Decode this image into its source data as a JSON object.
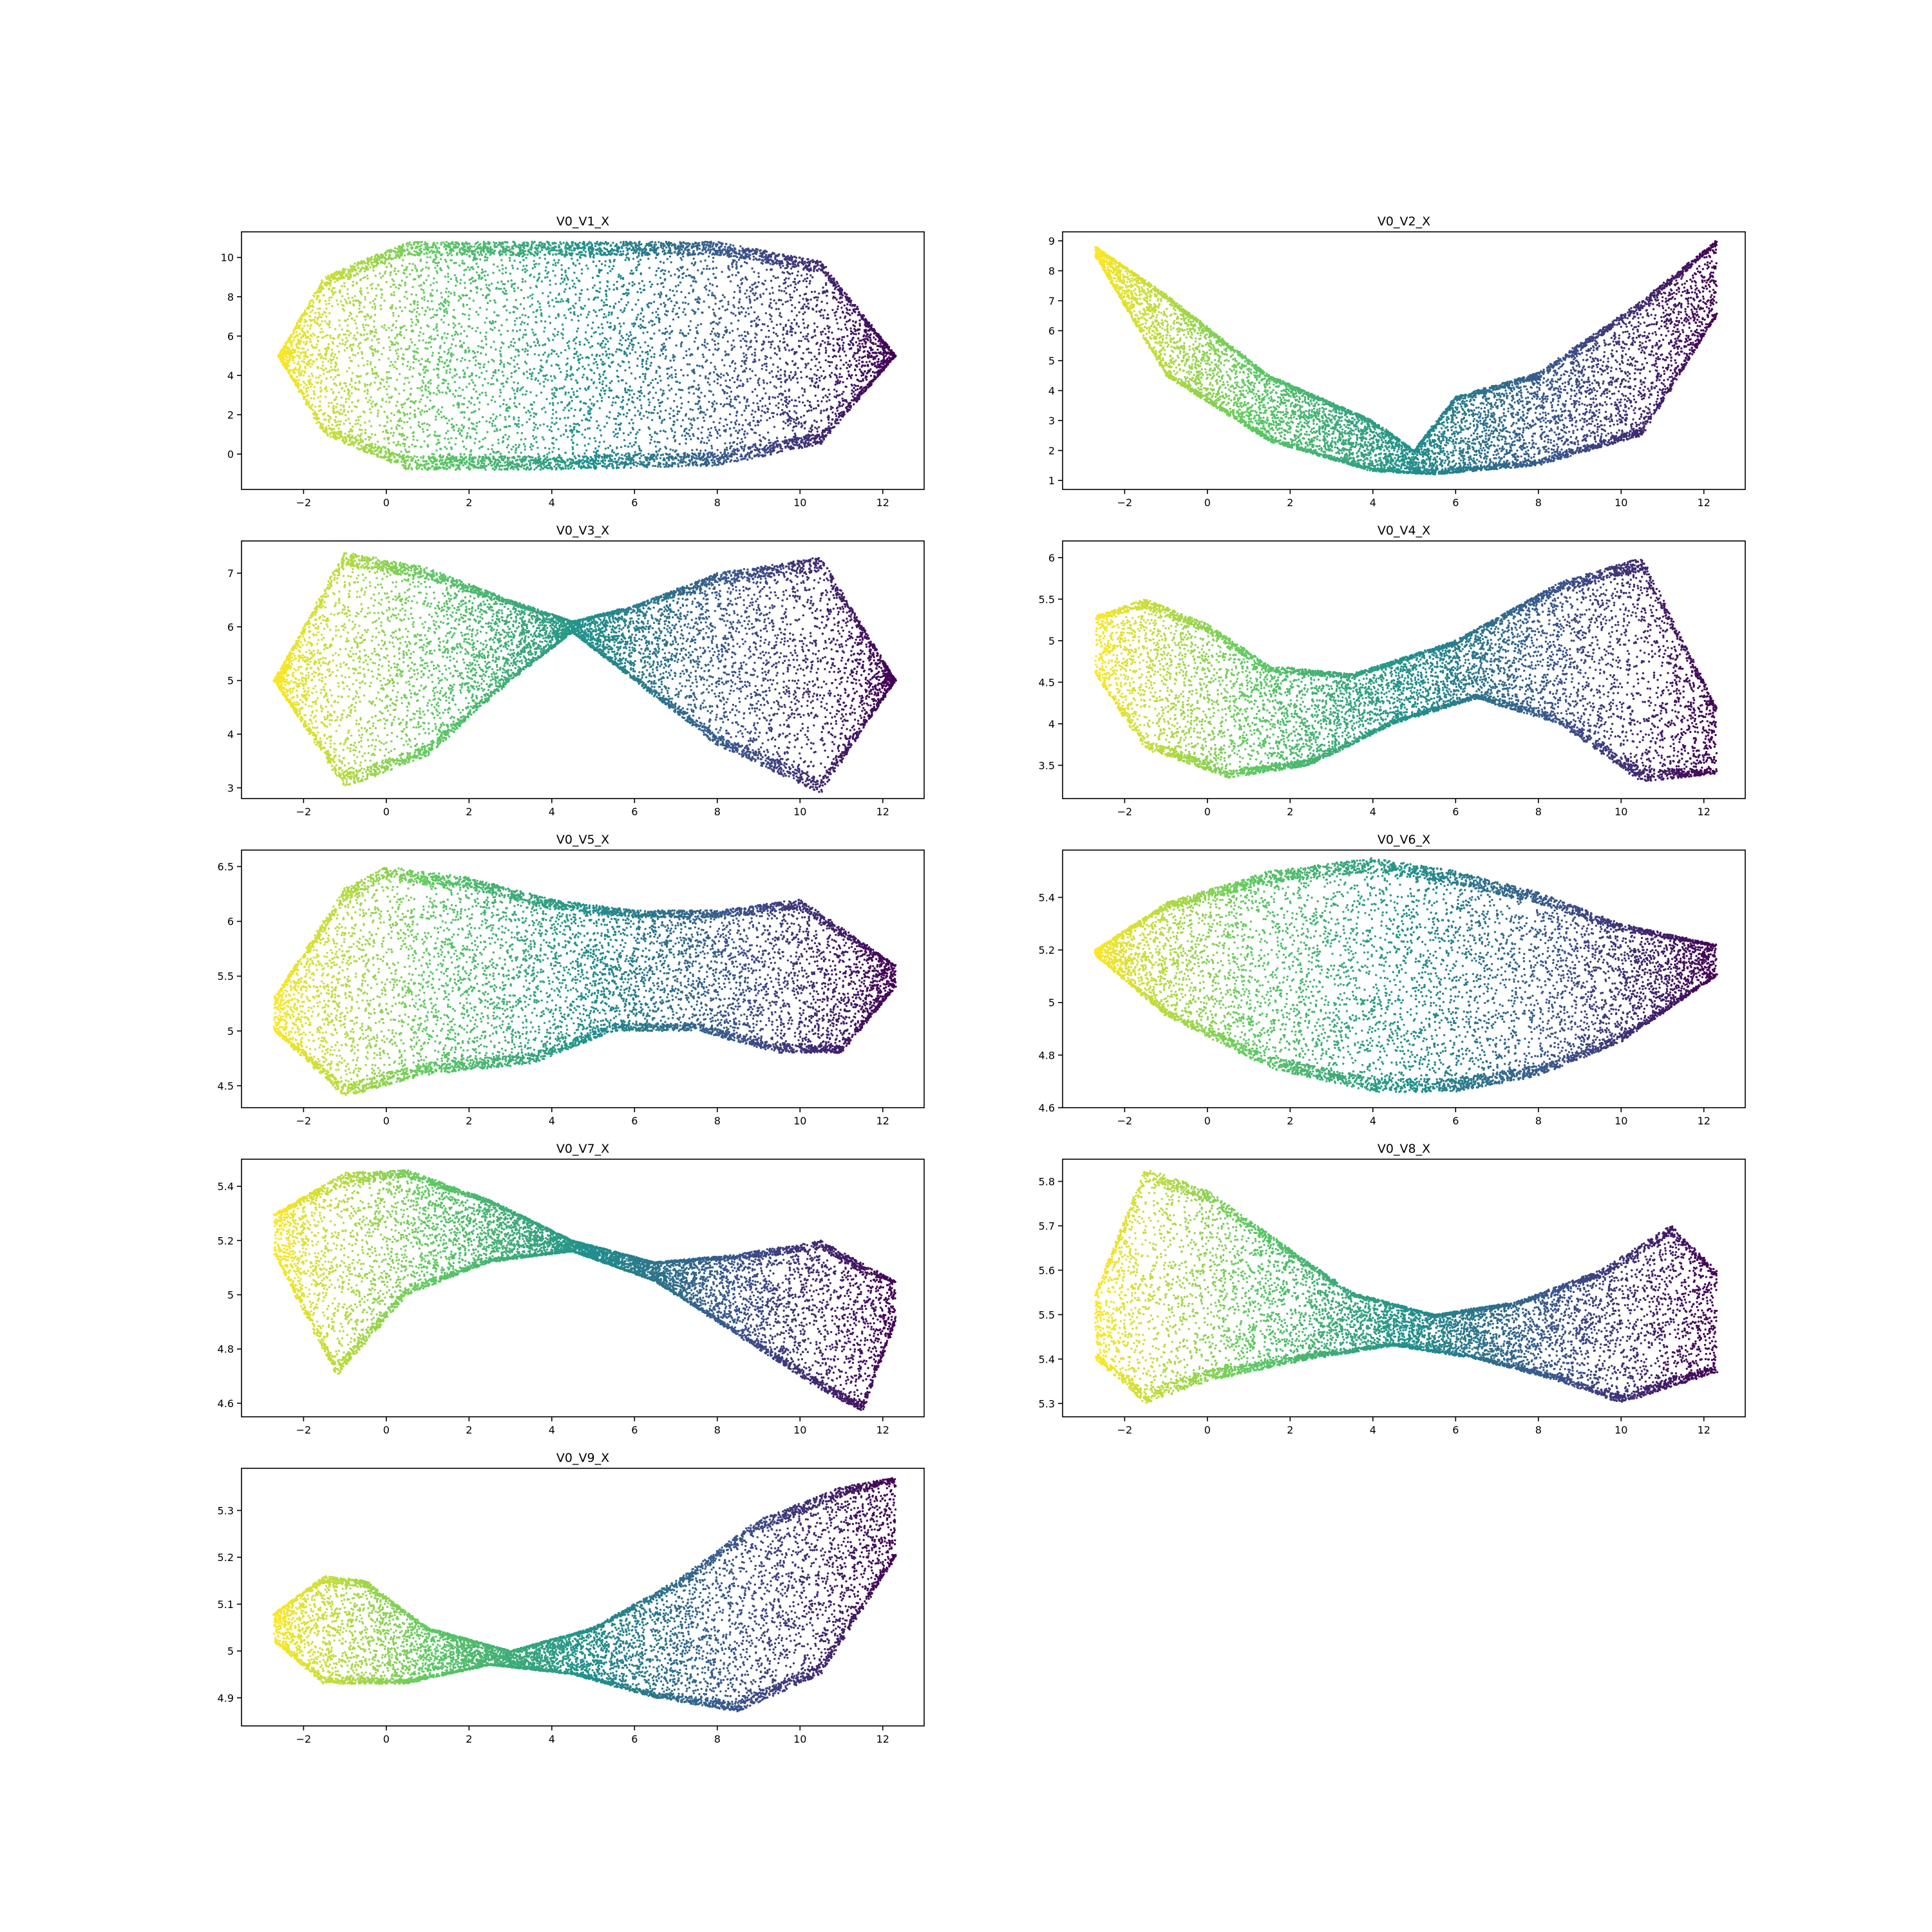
{
  "figure": {
    "colormap": "viridis",
    "colormap_stops": [
      "#440154",
      "#3b528b",
      "#21918c",
      "#5ec962",
      "#fde725"
    ],
    "point_count_per_panel": 9000
  },
  "chart_data": [
    {
      "type": "scatter",
      "title": "V0_V1_X",
      "xlim": [
        -3.5,
        13
      ],
      "ylim": [
        -1.8,
        11.3
      ],
      "xticks": [
        -2,
        0,
        2,
        4,
        6,
        8,
        10,
        12
      ],
      "yticks": [
        0,
        2,
        4,
        6,
        8,
        10
      ],
      "color_by": "x (reversed viridis)",
      "point_cloud": {
        "shape": "stadium",
        "x_range": [
          -2.6,
          12.3
        ],
        "y_min_at": [
          [
            -2.6,
            5.0
          ],
          [
            -1.5,
            1.0
          ],
          [
            0.5,
            -0.8
          ],
          [
            4.0,
            -0.8
          ],
          [
            8.0,
            -0.6
          ],
          [
            10.5,
            0.5
          ],
          [
            12.3,
            5.0
          ]
        ],
        "y_max_at": [
          [
            -2.6,
            5.0
          ],
          [
            -1.5,
            9.0
          ],
          [
            0.5,
            10.8
          ],
          [
            4.0,
            10.8
          ],
          [
            8.0,
            10.8
          ],
          [
            10.5,
            9.8
          ],
          [
            12.3,
            5.0
          ]
        ]
      }
    },
    {
      "type": "scatter",
      "title": "V0_V2_X",
      "xlim": [
        -3.5,
        13
      ],
      "ylim": [
        0.7,
        9.3
      ],
      "xticks": [
        -2,
        0,
        2,
        4,
        6,
        8,
        10,
        12
      ],
      "yticks": [
        1,
        2,
        3,
        4,
        5,
        6,
        7,
        8,
        9
      ],
      "color_by": "x (reversed viridis)",
      "point_cloud": {
        "shape": "banana",
        "x_range": [
          -2.7,
          12.3
        ],
        "y_min_at": [
          [
            -2.7,
            8.5
          ],
          [
            -1.0,
            4.5
          ],
          [
            1.5,
            2.3
          ],
          [
            4.0,
            1.3
          ],
          [
            5.5,
            1.2
          ],
          [
            8.0,
            1.5
          ],
          [
            10.5,
            2.5
          ],
          [
            12.3,
            6.5
          ]
        ],
        "y_max_at": [
          [
            -2.7,
            8.8
          ],
          [
            -1.0,
            7.2
          ],
          [
            1.5,
            4.5
          ],
          [
            4.0,
            3.0
          ],
          [
            5.0,
            2.0
          ],
          [
            6.0,
            3.8
          ],
          [
            8.0,
            4.6
          ],
          [
            10.5,
            7.0
          ],
          [
            12.3,
            9.0
          ]
        ]
      }
    },
    {
      "type": "scatter",
      "title": "V0_V3_X",
      "xlim": [
        -3.5,
        13
      ],
      "ylim": [
        2.8,
        7.6
      ],
      "xticks": [
        -2,
        0,
        2,
        4,
        6,
        8,
        10,
        12
      ],
      "yticks": [
        3,
        4,
        5,
        6,
        7
      ],
      "color_by": "x (reversed viridis)",
      "point_cloud": {
        "shape": "figure-eight",
        "x_range": [
          -2.7,
          12.3
        ],
        "y_min_at": [
          [
            -2.7,
            5.0
          ],
          [
            -1.0,
            3.0
          ],
          [
            1.0,
            3.6
          ],
          [
            3.0,
            5.0
          ],
          [
            4.5,
            5.9
          ],
          [
            6.0,
            5.0
          ],
          [
            8.0,
            3.8
          ],
          [
            10.5,
            2.9
          ],
          [
            12.3,
            5.0
          ]
        ],
        "y_max_at": [
          [
            -2.7,
            5.0
          ],
          [
            -1.0,
            7.4
          ],
          [
            1.0,
            7.1
          ],
          [
            3.0,
            6.5
          ],
          [
            4.5,
            6.1
          ],
          [
            6.0,
            6.4
          ],
          [
            8.0,
            7.0
          ],
          [
            10.5,
            7.3
          ],
          [
            12.3,
            5.0
          ]
        ]
      }
    },
    {
      "type": "scatter",
      "title": "V0_V4_X",
      "xlim": [
        -3.5,
        13
      ],
      "ylim": [
        3.1,
        6.2
      ],
      "xticks": [
        -2,
        0,
        2,
        4,
        6,
        8,
        10,
        12
      ],
      "yticks": [
        3.5,
        4.0,
        4.5,
        5.0,
        5.5,
        6.0
      ],
      "color_by": "x (reversed viridis)",
      "point_cloud": {
        "shape": "twisted",
        "x_range": [
          -2.7,
          12.3
        ],
        "y_min_at": [
          [
            -2.7,
            4.6
          ],
          [
            -1.5,
            3.7
          ],
          [
            0.5,
            3.35
          ],
          [
            2.5,
            3.5
          ],
          [
            4.5,
            4.0
          ],
          [
            6.5,
            4.3
          ],
          [
            8.5,
            4.0
          ],
          [
            10.5,
            3.3
          ],
          [
            12.3,
            3.4
          ]
        ],
        "y_max_at": [
          [
            -2.7,
            5.3
          ],
          [
            -1.5,
            5.5
          ],
          [
            0.0,
            5.2
          ],
          [
            1.5,
            4.7
          ],
          [
            3.5,
            4.6
          ],
          [
            6.0,
            5.0
          ],
          [
            8.5,
            5.7
          ],
          [
            10.5,
            6.0
          ],
          [
            12.3,
            4.2
          ]
        ]
      }
    },
    {
      "type": "scatter",
      "title": "V0_V5_X",
      "xlim": [
        -3.5,
        13
      ],
      "ylim": [
        4.3,
        6.65
      ],
      "xticks": [
        -2,
        0,
        2,
        4,
        6,
        8,
        10,
        12
      ],
      "yticks": [
        4.5,
        5.0,
        5.5,
        6.0,
        6.5
      ],
      "color_by": "x (reversed viridis)",
      "point_cloud": {
        "shape": "pinched-blob",
        "x_range": [
          -2.7,
          12.3
        ],
        "y_min_at": [
          [
            -2.7,
            5.0
          ],
          [
            -1.0,
            4.4
          ],
          [
            1.0,
            4.6
          ],
          [
            3.5,
            4.7
          ],
          [
            5.5,
            5.0
          ],
          [
            7.5,
            5.0
          ],
          [
            9.5,
            4.8
          ],
          [
            11.0,
            4.8
          ],
          [
            12.3,
            5.4
          ]
        ],
        "y_max_at": [
          [
            -2.7,
            5.3
          ],
          [
            -1.0,
            6.3
          ],
          [
            0.0,
            6.5
          ],
          [
            2.0,
            6.4
          ],
          [
            4.0,
            6.2
          ],
          [
            6.0,
            6.1
          ],
          [
            8.0,
            6.1
          ],
          [
            10.0,
            6.2
          ],
          [
            12.3,
            5.6
          ]
        ]
      }
    },
    {
      "type": "scatter",
      "title": "V0_V6_X",
      "xlim": [
        -3.5,
        13
      ],
      "ylim": [
        4.6,
        5.58
      ],
      "xticks": [
        -2,
        0,
        2,
        4,
        6,
        8,
        10,
        12
      ],
      "yticks": [
        4.6,
        4.8,
        5.0,
        5.2,
        5.4
      ],
      "color_by": "x (reversed viridis)",
      "point_cloud": {
        "shape": "lemon",
        "x_range": [
          -2.7,
          12.3
        ],
        "y_min_at": [
          [
            -2.7,
            5.18
          ],
          [
            -1.0,
            4.95
          ],
          [
            1.5,
            4.75
          ],
          [
            4.0,
            4.66
          ],
          [
            6.0,
            4.66
          ],
          [
            8.0,
            4.72
          ],
          [
            10.0,
            4.85
          ],
          [
            12.3,
            5.1
          ]
        ],
        "y_max_at": [
          [
            -2.7,
            5.2
          ],
          [
            -1.0,
            5.38
          ],
          [
            1.5,
            5.5
          ],
          [
            4.0,
            5.55
          ],
          [
            6.0,
            5.5
          ],
          [
            8.0,
            5.42
          ],
          [
            10.0,
            5.3
          ],
          [
            12.3,
            5.22
          ]
        ]
      }
    },
    {
      "type": "scatter",
      "title": "V0_V7_X",
      "xlim": [
        -3.5,
        13
      ],
      "ylim": [
        4.55,
        5.5
      ],
      "xticks": [
        -2,
        0,
        2,
        4,
        6,
        8,
        10,
        12
      ],
      "yticks": [
        4.6,
        4.8,
        5.0,
        5.2,
        5.4
      ],
      "color_by": "x (reversed viridis)",
      "point_cloud": {
        "shape": "bow-tie",
        "x_range": [
          -2.7,
          12.3
        ],
        "y_min_at": [
          [
            -2.7,
            5.15
          ],
          [
            -1.2,
            4.7
          ],
          [
            0.5,
            5.0
          ],
          [
            2.5,
            5.12
          ],
          [
            4.5,
            5.16
          ],
          [
            6.5,
            5.05
          ],
          [
            8.5,
            4.85
          ],
          [
            10.5,
            4.65
          ],
          [
            11.5,
            4.57
          ],
          [
            12.3,
            4.9
          ]
        ],
        "y_max_at": [
          [
            -2.7,
            5.3
          ],
          [
            -1.0,
            5.45
          ],
          [
            0.5,
            5.46
          ],
          [
            2.5,
            5.35
          ],
          [
            4.5,
            5.2
          ],
          [
            6.5,
            5.12
          ],
          [
            8.5,
            5.15
          ],
          [
            10.5,
            5.2
          ],
          [
            12.3,
            5.05
          ]
        ]
      }
    },
    {
      "type": "scatter",
      "title": "V0_V8_X",
      "xlim": [
        -3.5,
        13
      ],
      "ylim": [
        5.27,
        5.85
      ],
      "xticks": [
        -2,
        0,
        2,
        4,
        6,
        8,
        10,
        12
      ],
      "yticks": [
        5.3,
        5.4,
        5.5,
        5.6,
        5.7,
        5.8
      ],
      "color_by": "x (reversed viridis)",
      "point_cloud": {
        "shape": "wave",
        "x_range": [
          -2.7,
          12.3
        ],
        "y_min_at": [
          [
            -2.7,
            5.4
          ],
          [
            -1.5,
            5.3
          ],
          [
            0.0,
            5.35
          ],
          [
            2.5,
            5.4
          ],
          [
            4.5,
            5.43
          ],
          [
            6.5,
            5.4
          ],
          [
            8.5,
            5.35
          ],
          [
            10.0,
            5.3
          ],
          [
            12.3,
            5.37
          ]
        ],
        "y_max_at": [
          [
            -2.7,
            5.55
          ],
          [
            -1.5,
            5.83
          ],
          [
            0.0,
            5.78
          ],
          [
            1.5,
            5.68
          ],
          [
            3.5,
            5.55
          ],
          [
            5.5,
            5.5
          ],
          [
            7.5,
            5.53
          ],
          [
            9.5,
            5.6
          ],
          [
            11.2,
            5.7
          ],
          [
            12.3,
            5.6
          ]
        ]
      }
    },
    {
      "type": "scatter",
      "title": "V0_V9_X",
      "xlim": [
        -3.5,
        13
      ],
      "ylim": [
        4.84,
        5.39
      ],
      "xticks": [
        -2,
        0,
        2,
        4,
        6,
        8,
        10,
        12
      ],
      "yticks": [
        4.9,
        5.0,
        5.1,
        5.2,
        5.3
      ],
      "color_by": "x (reversed viridis)",
      "point_cloud": {
        "shape": "teardrop-eight",
        "x_range": [
          -2.7,
          12.3
        ],
        "y_min_at": [
          [
            -2.7,
            5.02
          ],
          [
            -1.5,
            4.93
          ],
          [
            0.5,
            4.93
          ],
          [
            2.5,
            4.97
          ],
          [
            4.5,
            4.95
          ],
          [
            6.5,
            4.9
          ],
          [
            8.5,
            4.87
          ],
          [
            10.5,
            4.95
          ],
          [
            12.3,
            5.2
          ]
        ],
        "y_max_at": [
          [
            -2.7,
            5.08
          ],
          [
            -1.5,
            5.16
          ],
          [
            -0.5,
            5.15
          ],
          [
            1.0,
            5.05
          ],
          [
            3.0,
            5.0
          ],
          [
            5.0,
            5.05
          ],
          [
            7.0,
            5.15
          ],
          [
            9.0,
            5.28
          ],
          [
            11.0,
            5.35
          ],
          [
            12.3,
            5.37
          ]
        ]
      }
    }
  ]
}
